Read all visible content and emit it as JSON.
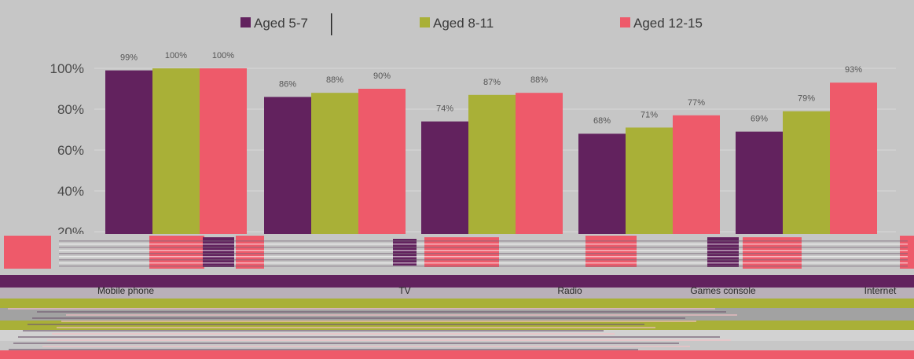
{
  "chart_data": {
    "type": "bar",
    "categories": [
      "Mobile phone",
      "TV",
      "Radio",
      "Games console",
      "Internet"
    ],
    "series": [
      {
        "name": "Aged 5-7",
        "color": "#62225e",
        "values": [
          99,
          86,
          74,
          68,
          69
        ]
      },
      {
        "name": "Aged 8-11",
        "color": "#a9b037",
        "values": [
          100,
          88,
          87,
          71,
          79
        ]
      },
      {
        "name": "Aged 12-15",
        "color": "#ee5a6a",
        "values": [
          100,
          90,
          88,
          77,
          93
        ]
      }
    ],
    "data_labels": [
      [
        "99%",
        "86%",
        "74%",
        "68%",
        "69%"
      ],
      [
        "100%",
        "88%",
        "87%",
        "71%",
        "79%"
      ],
      [
        "100%",
        "90%",
        "88%",
        "77%",
        "93%"
      ]
    ],
    "y_ticks": [
      "20%",
      "40%",
      "60%",
      "80%",
      "100%"
    ],
    "y_tick_values": [
      20,
      40,
      60,
      80,
      100
    ],
    "ylim": [
      0,
      110
    ],
    "legend_position": "top",
    "grid": true,
    "title": "",
    "xlabel": "",
    "ylabel": ""
  },
  "colors": {
    "plot_background": "#c6c6c6",
    "grid": "#d8d8d8",
    "noise_pink": "#ee5a6a",
    "noise_green": "#a9b037",
    "noise_purple": "#62225e",
    "noise_grey": "#c6c6c6"
  }
}
